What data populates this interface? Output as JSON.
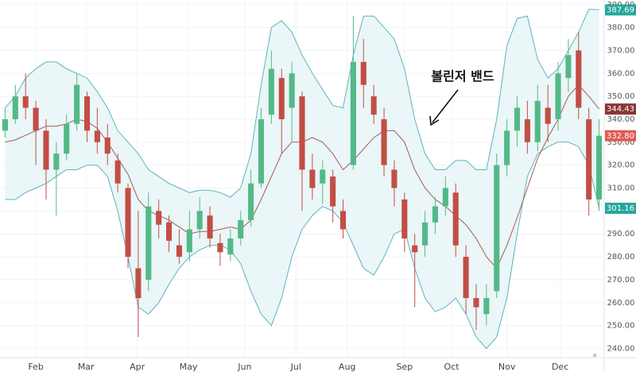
{
  "chart_data": {
    "type": "candlestick",
    "annotation": "볼린저 밴드",
    "open": [
      335,
      340,
      350,
      345,
      335,
      318,
      325,
      338,
      350,
      335,
      332,
      322,
      310,
      275,
      270,
      300,
      295,
      285,
      282,
      292,
      298,
      286,
      281,
      288,
      296,
      312,
      342,
      358,
      345,
      350,
      318,
      312,
      315,
      300,
      320,
      365,
      350,
      340,
      318,
      305,
      285,
      285,
      295,
      302,
      308,
      280,
      262,
      255,
      265,
      320,
      335,
      340,
      330,
      345,
      340,
      358,
      370,
      340,
      305
    ],
    "high": [
      345,
      355,
      360,
      348,
      340,
      330,
      342,
      360,
      352,
      345,
      338,
      325,
      312,
      300,
      308,
      305,
      298,
      292,
      300,
      306,
      302,
      290,
      292,
      300,
      318,
      345,
      370,
      362,
      365,
      352,
      325,
      322,
      318,
      305,
      385,
      375,
      355,
      345,
      322,
      308,
      290,
      300,
      306,
      315,
      312,
      285,
      268,
      268,
      325,
      340,
      350,
      348,
      355,
      355,
      365,
      375,
      378,
      345,
      340
    ],
    "low": [
      332,
      338,
      340,
      320,
      305,
      298,
      322,
      335,
      330,
      325,
      320,
      308,
      275,
      245,
      265,
      288,
      282,
      277,
      278,
      288,
      284,
      276,
      278,
      285,
      293,
      310,
      338,
      325,
      330,
      300,
      305,
      303,
      295,
      288,
      318,
      345,
      338,
      315,
      302,
      282,
      258,
      280,
      290,
      298,
      280,
      255,
      248,
      250,
      262,
      315,
      328,
      325,
      326,
      330,
      335,
      352,
      340,
      298,
      300
    ],
    "close": [
      340,
      350,
      345,
      335,
      318,
      325,
      338,
      355,
      335,
      330,
      325,
      312,
      280,
      262,
      302,
      294,
      287,
      280,
      292,
      300,
      288,
      282,
      288,
      296,
      312,
      340,
      362,
      340,
      360,
      318,
      310,
      318,
      302,
      292,
      365,
      355,
      342,
      320,
      310,
      288,
      282,
      295,
      302,
      310,
      285,
      262,
      258,
      262,
      320,
      335,
      345,
      330,
      348,
      338,
      360,
      368,
      345,
      305,
      332.8
    ],
    "upper": [
      345,
      350,
      358,
      362,
      365,
      365,
      362,
      360,
      358,
      352,
      345,
      335,
      330,
      325,
      318,
      315,
      312,
      310,
      308,
      309,
      309,
      308,
      306,
      310,
      325,
      355,
      380,
      383,
      378,
      368,
      360,
      353,
      346,
      345,
      368,
      385,
      385,
      380,
      375,
      362,
      340,
      325,
      318,
      318,
      322,
      322,
      318,
      318,
      340,
      372,
      384,
      385,
      366,
      358,
      362,
      370,
      378,
      388,
      387.69
    ],
    "middle": [
      330,
      331,
      333,
      335,
      337,
      337,
      338,
      340,
      339,
      336,
      330,
      323,
      316,
      305,
      300,
      298,
      296,
      293,
      290,
      291,
      291,
      292,
      293,
      292,
      296,
      305,
      315,
      325,
      330,
      330,
      332,
      330,
      325,
      318,
      322,
      327,
      332,
      335,
      335,
      330,
      318,
      310,
      305,
      302,
      298,
      294,
      288,
      280,
      275,
      285,
      297,
      310,
      323,
      332,
      340,
      350,
      355,
      350,
      344.43
    ],
    "lower": [
      305,
      305,
      308,
      310,
      312,
      315,
      318,
      318,
      320,
      320,
      315,
      300,
      280,
      258,
      255,
      260,
      268,
      275,
      280,
      283,
      285,
      285,
      283,
      277,
      265,
      255,
      250,
      262,
      280,
      292,
      298,
      302,
      300,
      295,
      285,
      275,
      272,
      280,
      290,
      292,
      275,
      262,
      256,
      258,
      262,
      255,
      245,
      240,
      245,
      262,
      290,
      315,
      325,
      328,
      330,
      330,
      328,
      320,
      301.16
    ],
    "up_color": "#53b987",
    "down_color": "#c24e45",
    "band_color": "#5fb3bd",
    "band_fill": "#eaf6f8",
    "middle_color": "#a65a55",
    "xlim": [
      -0.5,
      58.5
    ],
    "xticks": [
      {
        "value": 3,
        "label": "Feb"
      },
      {
        "value": 7.9,
        "label": "Mar"
      },
      {
        "value": 12.9,
        "label": "Apr"
      },
      {
        "value": 17.9,
        "label": "May"
      },
      {
        "value": 23.4,
        "label": "Jun"
      },
      {
        "value": 28.4,
        "label": "Jul"
      },
      {
        "value": 33.4,
        "label": "Aug"
      },
      {
        "value": 39,
        "label": "Sep"
      },
      {
        "value": 43.6,
        "label": "Oct"
      },
      {
        "value": 49,
        "label": "Nov"
      },
      {
        "value": 54.2,
        "label": "Dec"
      }
    ],
    "ylim": [
      236,
      392
    ],
    "yticks": [
      {
        "value": 240,
        "label": "240.00"
      },
      {
        "value": 250,
        "label": "250.00"
      },
      {
        "value": 260,
        "label": "260.00"
      },
      {
        "value": 270,
        "label": "270.00"
      },
      {
        "value": 280,
        "label": "280.00"
      },
      {
        "value": 290,
        "label": "290.00"
      },
      {
        "value": 300,
        "label": "300.00"
      },
      {
        "value": 310,
        "label": "310.00"
      },
      {
        "value": 320,
        "label": "320.00"
      },
      {
        "value": 330,
        "label": "330.00"
      },
      {
        "value": 340,
        "label": "340.00"
      },
      {
        "value": 350,
        "label": "350.00"
      },
      {
        "value": 360,
        "label": "360.00"
      },
      {
        "value": 370,
        "label": "370.00"
      },
      {
        "value": 380,
        "label": "380.00"
      },
      {
        "value": 390,
        "label": "390.00"
      }
    ],
    "grid": true,
    "last_tags": [
      {
        "value": 387.69,
        "label": "387.69",
        "color": "#26a69a"
      },
      {
        "value": 344.43,
        "label": "344.43",
        "color": "#8b3535"
      },
      {
        "value": 332.8,
        "label": "332.80",
        "color": "#e05b55"
      },
      {
        "value": 301.16,
        "label": "301.16",
        "color": "#26a69a"
      }
    ]
  }
}
